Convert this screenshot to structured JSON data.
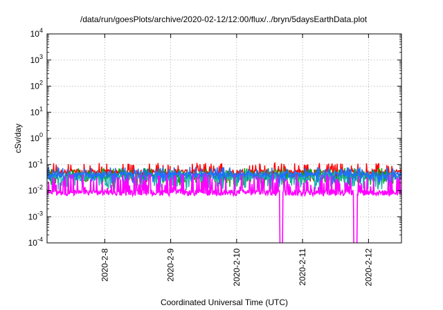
{
  "chart_data": {
    "type": "line",
    "title": "/data/run/goesPlots/archive/2020-02-12/12:00/flux/../bryn/5daysEarthData.plot",
    "xlabel": "Coordinated Universal Time (UTC)",
    "ylabel": "cSv/day",
    "y_scale": "log",
    "ylim": [
      0.0001,
      10000
    ],
    "y_ticks": [
      {
        "base": "10",
        "exp": "-4",
        "value": 0.0001
      },
      {
        "base": "10",
        "exp": "-3",
        "value": 0.001
      },
      {
        "base": "10",
        "exp": "-2",
        "value": 0.01
      },
      {
        "base": "10",
        "exp": "-1",
        "value": 0.1
      },
      {
        "base": "10",
        "exp": "0",
        "value": 1
      },
      {
        "base": "10",
        "exp": "1",
        "value": 10
      },
      {
        "base": "10",
        "exp": "2",
        "value": 100
      },
      {
        "base": "10",
        "exp": "3",
        "value": 1000
      },
      {
        "base": "10",
        "exp": "4",
        "value": 10000
      }
    ],
    "x_unit": "day",
    "xlim": [
      "2020-02-07 03:00",
      "2020-02-12 12:00"
    ],
    "x_ticks": [
      {
        "label": "2020-2-8",
        "value": "2020-02-08"
      },
      {
        "label": "2020-2-9",
        "value": "2020-02-09"
      },
      {
        "label": "2020-2-10",
        "value": "2020-02-10"
      },
      {
        "label": "2020-2-11",
        "value": "2020-02-11"
      },
      {
        "label": "2020-2-12",
        "value": "2020-02-12"
      }
    ],
    "grid": true,
    "legend": "none",
    "series": [
      {
        "color": "#ff0000",
        "x_range": [
          "2020-02-07 03:00",
          "2020-02-12 12:00"
        ],
        "typical": 0.05,
        "low": 0.03,
        "high": 0.11,
        "dropouts": []
      },
      {
        "color": "#00aa00",
        "x_range": [
          "2020-02-07 03:00",
          "2020-02-12 12:00"
        ],
        "typical": 0.035,
        "low": 0.02,
        "high": 0.07,
        "dropouts": []
      },
      {
        "color": "#20b2aa",
        "x_range": [
          "2020-02-07 03:00",
          "2020-02-12 12:00"
        ],
        "typical": 0.03,
        "low": 0.015,
        "high": 0.06,
        "dropouts": []
      },
      {
        "color": "#1e6fff",
        "x_range": [
          "2020-02-07 03:00",
          "2020-02-12 12:00"
        ],
        "typical": 0.04,
        "low": 0.025,
        "high": 0.08,
        "dropouts": []
      },
      {
        "color": "#ff00ff",
        "x_range": [
          "2020-02-07 03:00",
          "2020-02-12 12:00"
        ],
        "typical": 0.008,
        "low": 0.006,
        "high": 0.045,
        "dropouts": [
          "2020-02-10 16:00",
          "2020-02-10 16:30",
          "2020-02-11 19:00",
          "2020-02-11 19:15",
          "2020-02-11 19:30"
        ]
      }
    ]
  }
}
